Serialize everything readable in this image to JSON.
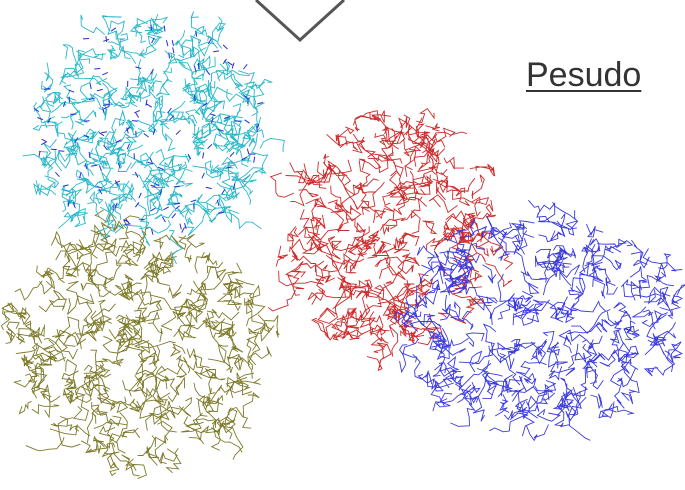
{
  "label": "Pesudo"
}
